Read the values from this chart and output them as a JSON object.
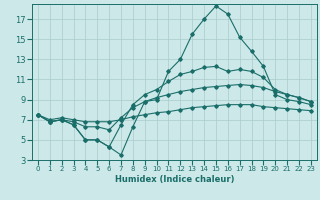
{
  "xlabel": "Humidex (Indice chaleur)",
  "bg_color": "#cce8e8",
  "line_color": "#1a6e6a",
  "grid_color": "#aacccc",
  "xlim": [
    -0.5,
    23.5
  ],
  "ylim": [
    3,
    18.5
  ],
  "xticks": [
    0,
    1,
    2,
    3,
    4,
    5,
    6,
    7,
    8,
    9,
    10,
    11,
    12,
    13,
    14,
    15,
    16,
    17,
    18,
    19,
    20,
    21,
    22,
    23
  ],
  "yticks": [
    3,
    5,
    7,
    9,
    11,
    13,
    15,
    17
  ],
  "lines": [
    {
      "x": [
        0,
        1,
        2,
        3,
        4,
        5,
        6,
        7,
        8,
        9,
        10,
        11,
        12,
        13,
        14,
        15,
        16,
        17,
        18,
        19,
        20,
        21,
        22,
        23
      ],
      "y": [
        7.5,
        6.8,
        7.0,
        6.5,
        5.0,
        5.0,
        4.3,
        3.5,
        6.3,
        8.8,
        9.0,
        11.8,
        13.0,
        15.5,
        17.0,
        18.3,
        17.5,
        15.2,
        13.8,
        12.3,
        9.5,
        9.0,
        8.8,
        8.5
      ]
    },
    {
      "x": [
        0,
        1,
        2,
        3,
        4,
        5,
        6,
        7,
        8,
        9,
        10,
        11,
        12,
        13,
        14,
        15,
        16,
        17,
        18,
        19,
        20,
        21,
        22,
        23
      ],
      "y": [
        7.5,
        6.8,
        7.0,
        6.5,
        5.0,
        5.0,
        4.3,
        6.5,
        8.5,
        9.5,
        10.0,
        10.8,
        11.5,
        11.8,
        12.2,
        12.3,
        11.8,
        12.0,
        11.8,
        11.2,
        10.0,
        9.5,
        9.2,
        8.8
      ]
    },
    {
      "x": [
        0,
        1,
        2,
        3,
        4,
        5,
        6,
        7,
        8,
        9,
        10,
        11,
        12,
        13,
        14,
        15,
        16,
        17,
        18,
        19,
        20,
        21,
        22,
        23
      ],
      "y": [
        7.5,
        6.8,
        7.0,
        6.8,
        6.3,
        6.3,
        6.0,
        7.2,
        8.2,
        8.8,
        9.2,
        9.5,
        9.8,
        10.0,
        10.2,
        10.3,
        10.4,
        10.5,
        10.4,
        10.2,
        9.8,
        9.5,
        9.2,
        8.8
      ]
    },
    {
      "x": [
        0,
        1,
        2,
        3,
        4,
        5,
        6,
        7,
        8,
        9,
        10,
        11,
        12,
        13,
        14,
        15,
        16,
        17,
        18,
        19,
        20,
        21,
        22,
        23
      ],
      "y": [
        7.5,
        7.0,
        7.2,
        7.0,
        6.8,
        6.8,
        6.8,
        7.0,
        7.3,
        7.5,
        7.7,
        7.8,
        8.0,
        8.2,
        8.3,
        8.4,
        8.5,
        8.5,
        8.5,
        8.3,
        8.2,
        8.1,
        8.0,
        7.9
      ]
    }
  ]
}
